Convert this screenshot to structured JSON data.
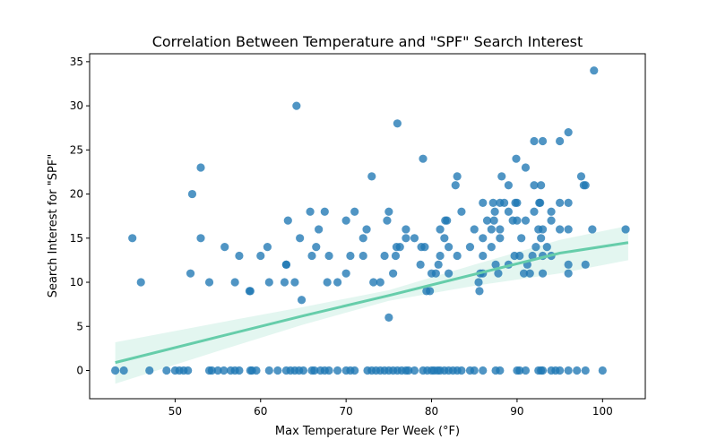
{
  "chart_data": {
    "type": "scatter",
    "title": "Correlation Between Temperature and \"SPF\" Search Interest",
    "xlabel": "Max Temperature Per Week (°F)",
    "ylabel": "Search Interest for \"SPF\"",
    "xlim": [
      40,
      105
    ],
    "ylim": [
      -3.2,
      35.9
    ],
    "xticks": [
      50,
      60,
      70,
      80,
      90,
      100
    ],
    "yticks": [
      0,
      5,
      10,
      15,
      20,
      25,
      30,
      35
    ],
    "grid": false,
    "colors": {
      "points": "#1f77b4",
      "regression": "#66cdaa",
      "band": "#66cdaa"
    },
    "regression": {
      "x": [
        43,
        55,
        65,
        75,
        85,
        95,
        103
      ],
      "y": [
        0.9,
        3.8,
        6.2,
        8.5,
        10.9,
        13.3,
        14.5
      ],
      "lower": [
        -1.5,
        2.2,
        5.2,
        7.9,
        9.6,
        11.0,
        12.5
      ],
      "upper": [
        3.2,
        5.4,
        7.2,
        9.1,
        12.0,
        14.8,
        16.4
      ]
    },
    "points": [
      [
        43,
        0
      ],
      [
        44,
        0
      ],
      [
        47,
        0
      ],
      [
        49,
        0
      ],
      [
        50,
        0
      ],
      [
        50.5,
        0
      ],
      [
        51,
        0
      ],
      [
        51.5,
        0
      ],
      [
        54,
        0
      ],
      [
        54.3,
        0
      ],
      [
        55,
        0
      ],
      [
        55.7,
        0
      ],
      [
        56.5,
        0
      ],
      [
        57,
        0
      ],
      [
        57.5,
        0
      ],
      [
        58.8,
        0
      ],
      [
        59,
        0
      ],
      [
        59.5,
        0
      ],
      [
        61,
        0
      ],
      [
        62,
        0
      ],
      [
        63,
        0
      ],
      [
        63.5,
        0
      ],
      [
        64,
        0
      ],
      [
        64.5,
        0
      ],
      [
        65,
        0
      ],
      [
        66,
        0
      ],
      [
        66.3,
        0
      ],
      [
        67,
        0
      ],
      [
        67.5,
        0
      ],
      [
        68,
        0
      ],
      [
        69,
        0
      ],
      [
        70,
        0
      ],
      [
        70.5,
        0
      ],
      [
        71,
        0
      ],
      [
        72.5,
        0
      ],
      [
        73,
        0
      ],
      [
        73.5,
        0
      ],
      [
        74,
        0
      ],
      [
        74.5,
        0
      ],
      [
        75,
        0
      ],
      [
        75.5,
        0
      ],
      [
        76,
        0
      ],
      [
        76.5,
        0
      ],
      [
        77,
        0
      ],
      [
        77.3,
        0
      ],
      [
        78,
        0
      ],
      [
        79,
        0
      ],
      [
        79.5,
        0
      ],
      [
        80,
        0
      ],
      [
        80.3,
        0
      ],
      [
        80.7,
        0
      ],
      [
        81,
        0
      ],
      [
        81.5,
        0
      ],
      [
        82,
        0
      ],
      [
        82.5,
        0
      ],
      [
        83,
        0
      ],
      [
        83.5,
        0
      ],
      [
        84.5,
        0
      ],
      [
        85,
        0
      ],
      [
        86,
        0
      ],
      [
        87.5,
        0
      ],
      [
        88,
        0
      ],
      [
        90,
        0
      ],
      [
        90.3,
        0
      ],
      [
        91,
        0
      ],
      [
        92.5,
        0
      ],
      [
        92.8,
        0
      ],
      [
        93,
        0
      ],
      [
        94,
        0
      ],
      [
        94.5,
        0
      ],
      [
        95,
        0
      ],
      [
        96,
        0
      ],
      [
        97,
        0
      ],
      [
        98,
        0
      ],
      [
        100,
        0
      ],
      [
        45,
        15
      ],
      [
        46,
        10
      ],
      [
        51.8,
        11
      ],
      [
        52,
        20
      ],
      [
        53,
        23
      ],
      [
        53,
        15
      ],
      [
        54,
        10
      ],
      [
        55.8,
        14
      ],
      [
        57,
        10
      ],
      [
        57.5,
        13
      ],
      [
        58.7,
        9
      ],
      [
        58.8,
        9
      ],
      [
        60,
        13
      ],
      [
        60.8,
        14
      ],
      [
        61,
        10
      ],
      [
        62.8,
        10
      ],
      [
        63,
        12
      ],
      [
        63,
        12
      ],
      [
        63.2,
        17
      ],
      [
        64,
        10
      ],
      [
        64.2,
        30
      ],
      [
        64.6,
        15
      ],
      [
        64.8,
        8
      ],
      [
        65.8,
        18
      ],
      [
        66,
        13
      ],
      [
        66.5,
        14
      ],
      [
        66.8,
        16
      ],
      [
        67.5,
        18
      ],
      [
        67.8,
        10
      ],
      [
        68,
        13
      ],
      [
        69,
        10
      ],
      [
        70,
        17
      ],
      [
        70,
        11
      ],
      [
        70.5,
        13
      ],
      [
        71,
        18
      ],
      [
        72,
        13
      ],
      [
        72,
        15
      ],
      [
        72.4,
        16
      ],
      [
        73,
        22
      ],
      [
        73.2,
        10
      ],
      [
        74,
        10
      ],
      [
        74.5,
        13
      ],
      [
        74.8,
        17
      ],
      [
        75,
        18
      ],
      [
        75,
        6
      ],
      [
        75.5,
        11
      ],
      [
        75.8,
        13
      ],
      [
        75.9,
        14
      ],
      [
        76,
        28
      ],
      [
        76.3,
        14
      ],
      [
        77,
        16
      ],
      [
        77,
        15
      ],
      [
        78,
        15
      ],
      [
        78.7,
        12
      ],
      [
        78.8,
        14
      ],
      [
        79,
        24
      ],
      [
        79.2,
        14
      ],
      [
        79.4,
        9
      ],
      [
        79.8,
        9
      ],
      [
        80,
        11
      ],
      [
        80.5,
        11
      ],
      [
        80.8,
        12
      ],
      [
        81,
        13
      ],
      [
        81,
        16
      ],
      [
        81.5,
        15
      ],
      [
        81.6,
        17
      ],
      [
        81.8,
        17
      ],
      [
        82,
        11
      ],
      [
        82,
        14
      ],
      [
        82.8,
        21
      ],
      [
        83,
        13
      ],
      [
        83,
        22
      ],
      [
        83.5,
        18
      ],
      [
        84.5,
        14
      ],
      [
        85,
        16
      ],
      [
        85.5,
        10
      ],
      [
        85.6,
        9
      ],
      [
        85.7,
        11
      ],
      [
        86,
        11
      ],
      [
        86,
        13
      ],
      [
        86,
        15
      ],
      [
        86,
        19
      ],
      [
        86.5,
        17
      ],
      [
        87,
        14
      ],
      [
        87,
        16
      ],
      [
        87.2,
        19
      ],
      [
        87.3,
        17
      ],
      [
        87.4,
        18
      ],
      [
        87.5,
        12
      ],
      [
        87.8,
        11
      ],
      [
        88,
        19
      ],
      [
        88,
        15
      ],
      [
        88,
        16
      ],
      [
        88.2,
        22
      ],
      [
        88.5,
        19
      ],
      [
        89,
        21
      ],
      [
        89,
        12
      ],
      [
        89,
        18
      ],
      [
        89.5,
        17
      ],
      [
        89.7,
        13
      ],
      [
        89.8,
        19
      ],
      [
        89.9,
        24
      ],
      [
        90,
        17
      ],
      [
        90,
        19
      ],
      [
        90.3,
        13
      ],
      [
        90.5,
        15
      ],
      [
        90.8,
        11
      ],
      [
        91,
        17
      ],
      [
        91,
        23
      ],
      [
        91.2,
        12
      ],
      [
        91.5,
        11
      ],
      [
        91.8,
        13
      ],
      [
        92,
        18
      ],
      [
        92,
        21
      ],
      [
        92,
        26
      ],
      [
        92.2,
        14
      ],
      [
        92.5,
        16
      ],
      [
        92.6,
        19
      ],
      [
        92.7,
        19
      ],
      [
        92.8,
        21
      ],
      [
        92.8,
        15
      ],
      [
        93,
        13
      ],
      [
        93,
        26
      ],
      [
        93,
        11
      ],
      [
        93,
        16
      ],
      [
        93.5,
        14
      ],
      [
        94,
        17
      ],
      [
        94,
        18
      ],
      [
        94,
        13
      ],
      [
        95,
        19
      ],
      [
        95,
        26
      ],
      [
        95,
        16
      ],
      [
        96,
        27
      ],
      [
        96,
        19
      ],
      [
        96,
        12
      ],
      [
        96,
        11
      ],
      [
        96,
        16
      ],
      [
        97.5,
        22
      ],
      [
        97.8,
        21
      ],
      [
        98,
        21
      ],
      [
        98,
        12
      ],
      [
        98.8,
        16
      ],
      [
        99,
        34
      ],
      [
        102.7,
        16
      ]
    ]
  }
}
